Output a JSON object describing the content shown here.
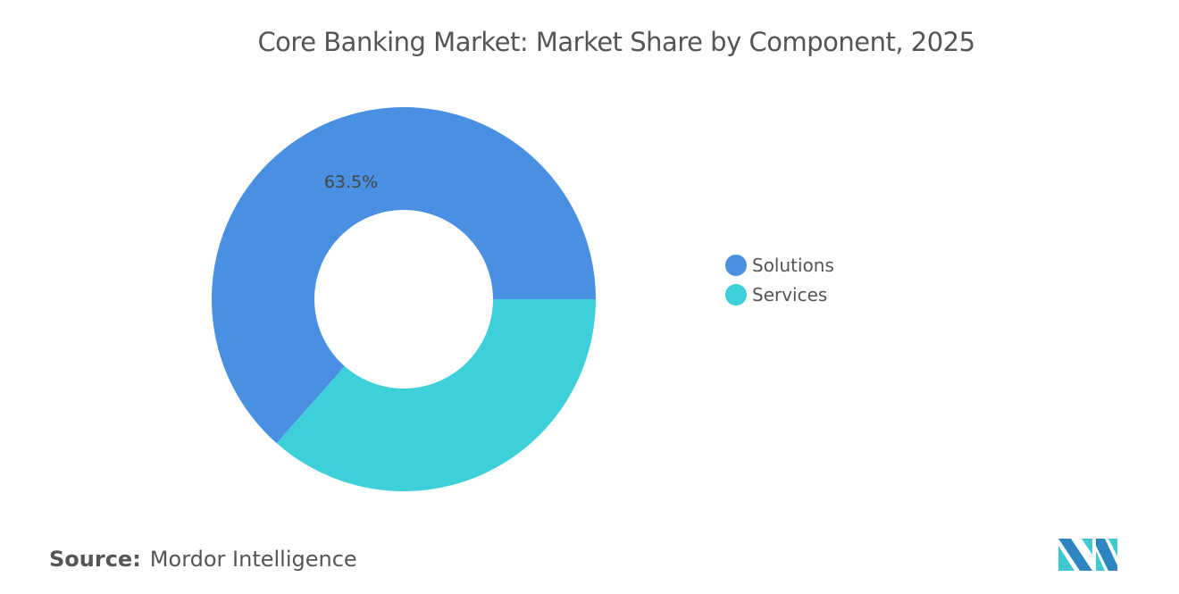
{
  "chart_data": {
    "type": "pie",
    "donut": true,
    "title": "Core Banking Market: Market Share by Component, 2025",
    "categories": [
      "Solutions",
      "Services"
    ],
    "values": [
      63.5,
      36.5
    ],
    "data_labels": [
      "63.5%",
      ""
    ],
    "colors": [
      "#4a90e2",
      "#3ed0d8"
    ],
    "legend_position": "right"
  },
  "source": {
    "label": "Source:",
    "value": "Mordor Intelligence"
  },
  "logo": {
    "text": "Mordor Intelligence",
    "colors": [
      "#2e86c1",
      "#3ec8d0"
    ]
  }
}
